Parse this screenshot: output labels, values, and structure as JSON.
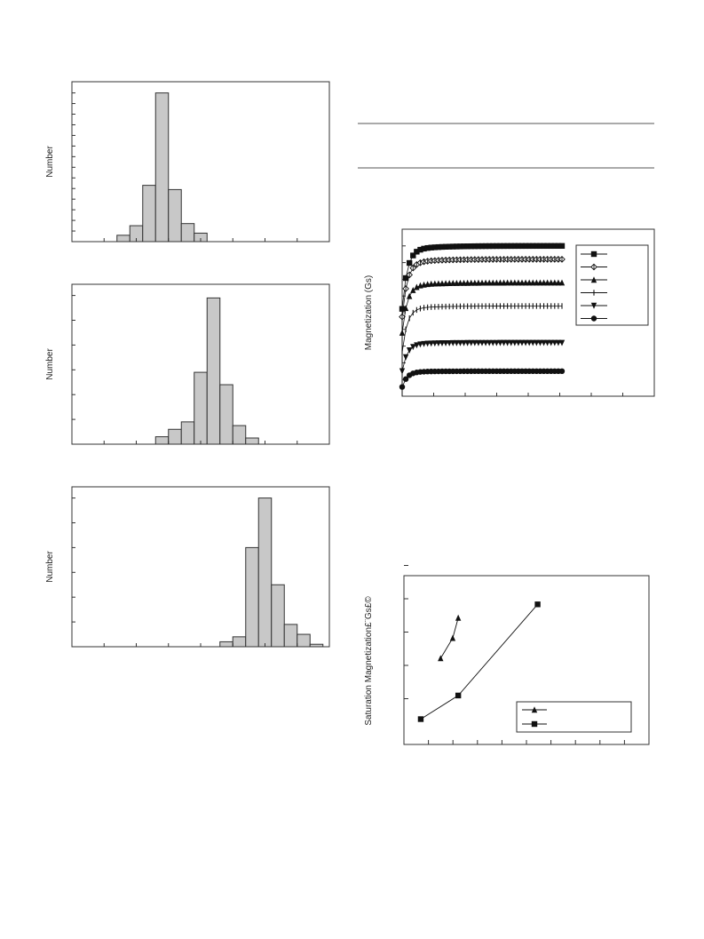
{
  "page": {
    "background": "#ffffff"
  },
  "histograms": [
    {
      "ylabel": "Number",
      "bar_color": "#c8c8c8"
    },
    {
      "ylabel": "Number",
      "bar_color": "#c8c8c8"
    },
    {
      "ylabel": "Number",
      "bar_color": "#c8c8c8"
    }
  ],
  "magnetization": {
    "ylabel": "Magnetization (Gs)"
  },
  "saturation": {
    "ylabel": "Saturation Magnetization£¨Gs£©"
  },
  "chart_data": [
    {
      "type": "bar",
      "ylabel": "Number",
      "xlim": [
        0,
        10
      ],
      "ylim": [
        0,
        14
      ],
      "bins": [
        {
          "x0": 1.75,
          "x1": 2.25,
          "y": 0.6
        },
        {
          "x0": 2.25,
          "x1": 2.75,
          "y": 1.5
        },
        {
          "x0": 2.75,
          "x1": 3.25,
          "y": 5.3
        },
        {
          "x0": 3.25,
          "x1": 3.75,
          "y": 14.0
        },
        {
          "x0": 3.75,
          "x1": 4.25,
          "y": 4.9
        },
        {
          "x0": 4.25,
          "x1": 4.75,
          "y": 1.7
        },
        {
          "x0": 4.75,
          "x1": 5.25,
          "y": 0.8
        }
      ]
    },
    {
      "type": "bar",
      "ylabel": "Number",
      "xlim": [
        0,
        10
      ],
      "ylim": [
        0,
        6
      ],
      "bins": [
        {
          "x0": 3.25,
          "x1": 3.75,
          "y": 0.3
        },
        {
          "x0": 3.75,
          "x1": 4.25,
          "y": 0.6
        },
        {
          "x0": 4.25,
          "x1": 4.75,
          "y": 0.9
        },
        {
          "x0": 4.75,
          "x1": 5.25,
          "y": 2.9
        },
        {
          "x0": 5.25,
          "x1": 5.75,
          "y": 5.9
        },
        {
          "x0": 5.75,
          "x1": 6.25,
          "y": 2.4
        },
        {
          "x0": 6.25,
          "x1": 6.75,
          "y": 0.75
        },
        {
          "x0": 6.75,
          "x1": 7.25,
          "y": 0.25
        }
      ]
    },
    {
      "type": "bar",
      "ylabel": "Number",
      "xlim": [
        0,
        10
      ],
      "ylim": [
        0,
        6
      ],
      "bins": [
        {
          "x0": 5.75,
          "x1": 6.25,
          "y": 0.2
        },
        {
          "x0": 6.25,
          "x1": 6.75,
          "y": 0.4
        },
        {
          "x0": 6.75,
          "x1": 7.25,
          "y": 4.0
        },
        {
          "x0": 7.25,
          "x1": 7.75,
          "y": 6.0
        },
        {
          "x0": 7.75,
          "x1": 8.25,
          "y": 2.5
        },
        {
          "x0": 8.25,
          "x1": 8.75,
          "y": 0.9
        },
        {
          "x0": 8.75,
          "x1": 9.25,
          "y": 0.5
        },
        {
          "x0": 9.25,
          "x1": 9.75,
          "y": 0.1
        }
      ]
    },
    {
      "type": "line",
      "ylabel": "Magnetization (Gs)",
      "xlim": [
        0,
        10
      ],
      "ylim": [
        0,
        10
      ],
      "legend": "top-right",
      "series": [
        {
          "marker": "square",
          "y_sat": 9.0,
          "y0": 5.5
        },
        {
          "marker": "diamond-plus",
          "y_sat": 8.2,
          "y0": 5.0
        },
        {
          "marker": "triangle-up",
          "y_sat": 6.8,
          "y0": 4.0
        },
        {
          "marker": "bar",
          "y_sat": 5.4,
          "y0": 2.8
        },
        {
          "marker": "triangle-down",
          "y_sat": 3.2,
          "y0": 1.6
        },
        {
          "marker": "circle",
          "y_sat": 1.5,
          "y0": 0.6
        }
      ]
    },
    {
      "type": "line",
      "ylabel": "Saturation Magnetization£¨Gs£©",
      "xlim": [
        0,
        10
      ],
      "ylim": [
        0,
        10
      ],
      "legend": "bottom-right",
      "series": [
        {
          "marker": "triangle-up",
          "x": [
            1.3,
            1.85,
            2.1
          ],
          "y": [
            5.1,
            6.3,
            7.5
          ]
        },
        {
          "marker": "square",
          "x": [
            0.4,
            2.1,
            5.7
          ],
          "y": [
            1.5,
            2.9,
            8.3
          ]
        }
      ]
    }
  ]
}
